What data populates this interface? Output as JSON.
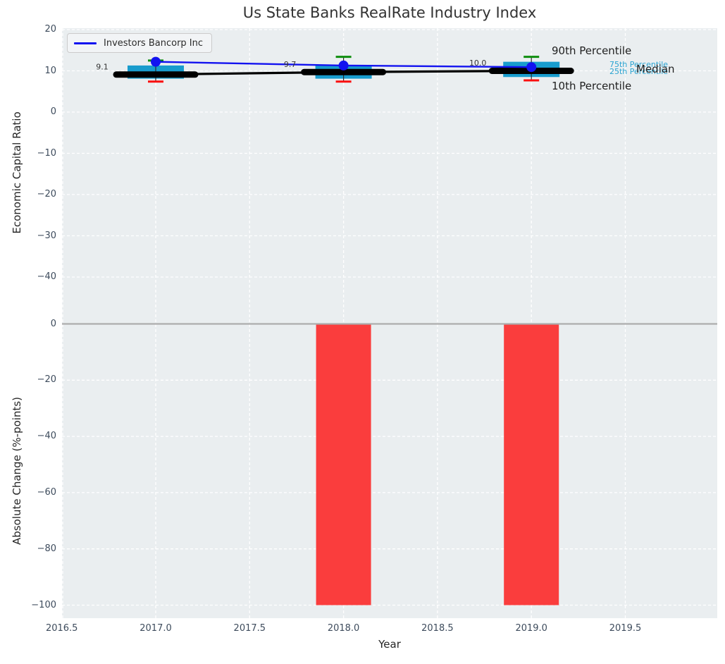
{
  "title": "Us State Banks RealRate Industry Index",
  "legend": {
    "label": "Investors Bancorp Inc"
  },
  "annotations": {
    "p90": "90th Percentile",
    "p75": "75th Percentile",
    "p25": "25th Percentile",
    "median": "Median",
    "p10": "10th Percentile"
  },
  "top_axis": {
    "ylabel": "Economic Capital Ratio",
    "tick_labels": [
      "20",
      "10",
      "0",
      "−10",
      "−20",
      "−30",
      "−40"
    ],
    "tick_values": [
      20,
      10,
      0,
      -10,
      -20,
      -30,
      -40
    ]
  },
  "bottom_axis": {
    "ylabel": "Absolute Change (%-points)",
    "tick_labels": [
      "0",
      "−20",
      "−40",
      "−60",
      "−80",
      "−100"
    ],
    "tick_values": [
      0,
      -20,
      -40,
      -60,
      -80,
      -100
    ]
  },
  "x_axis": {
    "label": "Year",
    "tick_labels": [
      "2016.5",
      "2017.0",
      "2017.5",
      "2018.0",
      "2018.5",
      "2019.0",
      "2019.5"
    ],
    "tick_values": [
      2016.5,
      2017,
      2017.5,
      2018,
      2018.5,
      2019,
      2019.5
    ]
  },
  "colors": {
    "plot_background": "#eaeef0",
    "grid": "#ffffff",
    "box_fill": "#189ccd",
    "percentile_text": "#29a3d1",
    "company_line": "#1212f0",
    "median_line": "#000000",
    "p90_cap": "#0e8e0e",
    "p10_cap": "#fa0f0f",
    "bar_negative": "#fa3d3d",
    "zero_line": "#adadad",
    "tick_label": "#3d4b5c",
    "title_text": "#323232",
    "annotation_text": "#1f1f1f"
  },
  "chart_data": [
    {
      "type": "line",
      "title": "Us State Banks RealRate Industry Index",
      "xlabel": "Year",
      "ylabel": "Economic Capital Ratio",
      "x": [
        2017,
        2018,
        2019
      ],
      "xlim": [
        2016.5,
        2020.0
      ],
      "ylim": [
        -50,
        20
      ],
      "grid": "white-dashed",
      "legend_position": "upper-left",
      "series": [
        {
          "name": "Investors Bancorp Inc",
          "style": "blue line with dot markers",
          "values": [
            12.2,
            11.3,
            10.9
          ]
        },
        {
          "name": "Median",
          "style": "thick black line",
          "values": [
            9.1,
            9.7,
            10.0
          ],
          "point_labels": [
            "9.1",
            "9.7",
            "10.0"
          ]
        },
        {
          "name": "75th Percentile",
          "style": "cyan box top",
          "values": [
            11.3,
            11.4,
            12.2
          ]
        },
        {
          "name": "25th Percentile",
          "style": "cyan box bottom",
          "values": [
            8.1,
            8.1,
            8.5
          ]
        },
        {
          "name": "90th Percentile",
          "style": "green whisker cap",
          "values": [
            12.5,
            13.4,
            13.4
          ]
        },
        {
          "name": "10th Percentile",
          "style": "red whisker cap",
          "values": [
            7.4,
            7.4,
            7.7
          ]
        }
      ]
    },
    {
      "type": "bar",
      "xlabel": "Year",
      "ylabel": "Absolute Change (%-points)",
      "x": [
        2018,
        2019
      ],
      "values": [
        -100,
        -100
      ],
      "xlim": [
        2016.5,
        2020.0
      ],
      "ylim": [
        -105,
        2.5
      ],
      "bar_color": "#fa3d3d"
    }
  ]
}
